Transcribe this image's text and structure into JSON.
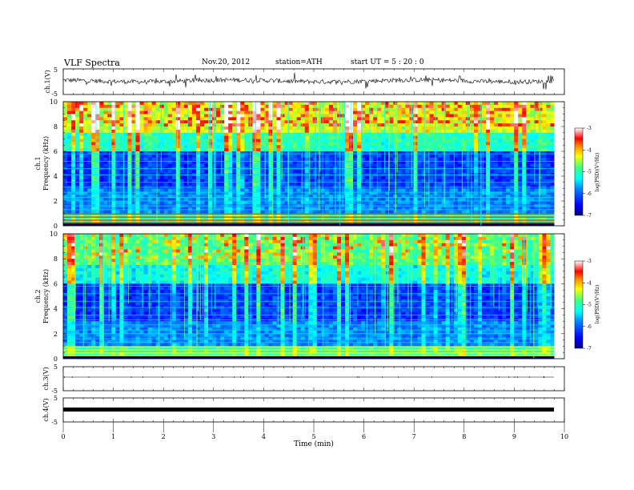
{
  "header": {
    "title": "VLF  Spectra",
    "date": "Nov.20, 2012",
    "station": "station=ATH",
    "start": "start  UT  =   5  : 20 : 0"
  },
  "chart_data": [
    {
      "type": "line",
      "panel": "ch1-waveform",
      "ylabel": "ch.1(V)",
      "ylim": [
        -5,
        5
      ],
      "yticks": [
        "5",
        "-5"
      ],
      "x_end": 9.8
    },
    {
      "type": "heatmap",
      "panel": "ch1-spectrogram",
      "ylabel": "ch.1",
      "ylabel2": "Frequency  (kHz)",
      "ylim": [
        0,
        10
      ],
      "yticks": [
        "0",
        "2",
        "4",
        "6",
        "8",
        "10"
      ],
      "colorbar_label": "log(PSD)(V²/Hz)",
      "colorbar_ticks": [
        "-3",
        "-4",
        "-5",
        "-6",
        "-7"
      ],
      "colorbar_range": [
        -7,
        -3
      ]
    },
    {
      "type": "heatmap",
      "panel": "ch2-spectrogram",
      "ylabel": "ch.2",
      "ylabel2": "Frequency  (kHz)",
      "ylim": [
        0,
        10
      ],
      "yticks": [
        "0",
        "2",
        "4",
        "6",
        "8",
        "10"
      ],
      "colorbar_label": "log(PSD)(V²/Hz)",
      "colorbar_ticks": [
        "-3",
        "-4",
        "-5",
        "-6",
        "-7"
      ],
      "colorbar_range": [
        -7,
        -3
      ]
    },
    {
      "type": "line",
      "panel": "ch3-waveform",
      "ylabel": "ch.3(V)",
      "ylim": [
        -5,
        5
      ],
      "yticks": [
        "5",
        "-5"
      ]
    },
    {
      "type": "line",
      "panel": "ch4-waveform",
      "ylabel": "ch.4(V)",
      "ylim": [
        -5,
        5
      ],
      "yticks": [
        "5",
        "-5"
      ]
    }
  ],
  "xaxis": {
    "label": "Time  (min)",
    "xlim": [
      0,
      10
    ],
    "ticks": [
      "0",
      "1",
      "2",
      "3",
      "4",
      "5",
      "6",
      "7",
      "8",
      "9",
      "10"
    ]
  },
  "colors": {
    "colormap": [
      "#00007f",
      "#0000ff",
      "#0080ff",
      "#00ffff",
      "#80ff80",
      "#ffff00",
      "#ff8000",
      "#ff0000",
      "#ffffff"
    ]
  }
}
